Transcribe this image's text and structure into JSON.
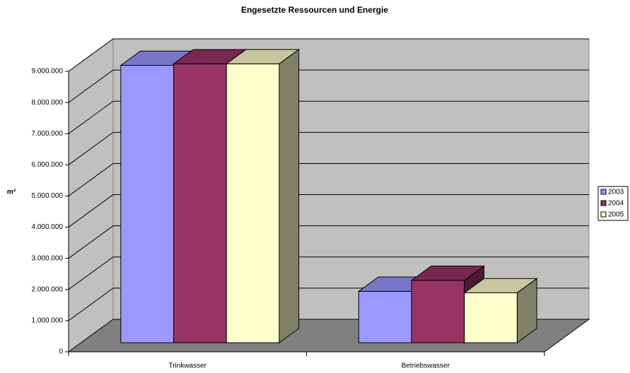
{
  "chart_data": {
    "type": "bar3d",
    "title": "Engesetzte Ressourcen und Energie",
    "y_label": "m³",
    "categories": [
      "Trinkwasser",
      "Betriebswasser"
    ],
    "series": [
      {
        "name": "2003",
        "color": "#9999ff",
        "values": [
          8900000,
          1650000
        ]
      },
      {
        "name": "2004",
        "color": "#993366",
        "values": [
          8950000,
          2000000
        ]
      },
      {
        "name": "2005",
        "color": "#ffffcc",
        "values": [
          8950000,
          1600000
        ]
      }
    ],
    "ylim": [
      0,
      9000000
    ],
    "yticks": [
      {
        "value": 0,
        "label": "0"
      },
      {
        "value": 1000000,
        "label": "1.000.000"
      },
      {
        "value": 2000000,
        "label": "2.000.000"
      },
      {
        "value": 3000000,
        "label": "3.000.000"
      },
      {
        "value": 4000000,
        "label": "4.000.000"
      },
      {
        "value": 5000000,
        "label": "5.000.000"
      },
      {
        "value": 6000000,
        "label": "6.000.000"
      },
      {
        "value": 7000000,
        "label": "7.000.000"
      },
      {
        "value": 8000000,
        "label": "8.000.000"
      },
      {
        "value": 9000000,
        "label": "9.000.000"
      }
    ],
    "grid": true,
    "legend": "right"
  }
}
